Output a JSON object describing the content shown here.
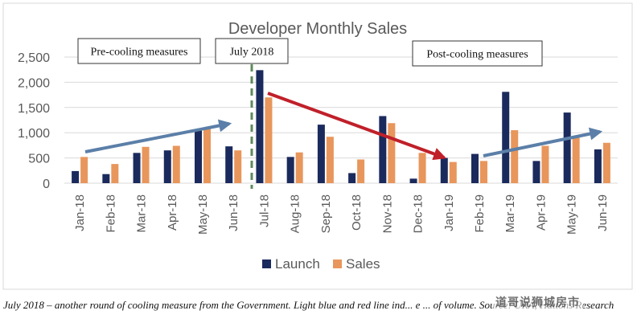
{
  "chart_data": {
    "type": "bar",
    "title": "Developer Monthly Sales",
    "categories": [
      "Jan-18",
      "Feb-18",
      "Mar-18",
      "Apr-18",
      "May-18",
      "Jun-18",
      "Jul-18",
      "Aug-18",
      "Sep-18",
      "Oct-18",
      "Nov-18",
      "Dec-18",
      "Jan-19",
      "Feb-19",
      "Mar-19",
      "Apr-19",
      "May-19",
      "Jun-19"
    ],
    "series": [
      {
        "name": "Launch",
        "color": "#1b2a5c",
        "values": [
          240,
          180,
          600,
          650,
          1050,
          730,
          2240,
          520,
          1160,
          200,
          1330,
          90,
          500,
          580,
          1810,
          440,
          1400,
          670
        ]
      },
      {
        "name": "Sales",
        "color": "#e8965c",
        "values": [
          520,
          380,
          720,
          740,
          1080,
          650,
          1700,
          610,
          920,
          470,
          1190,
          600,
          420,
          440,
          1050,
          740,
          920,
          800
        ]
      }
    ],
    "y_ticks": [
      "0",
      "500",
      "1,000",
      "1,500",
      "2,000",
      "2,500"
    ],
    "ylim": [
      0,
      2500
    ],
    "grid": true,
    "legend_position": "bottom",
    "annotations": {
      "pre": "Pre-cooling measures",
      "july": "July 2018",
      "post": "Post-cooling measures"
    },
    "trend_colors": {
      "light_blue": "#5b7fa8",
      "red": "#c0202a",
      "marker": "#5e8a5e"
    }
  },
  "caption": "July 2018 – another round of cooling measure from the Government. Light blue and red line ind... e ... of volume. Source: URA, Huttons Research",
  "watermark": "道哥说狮城房市"
}
